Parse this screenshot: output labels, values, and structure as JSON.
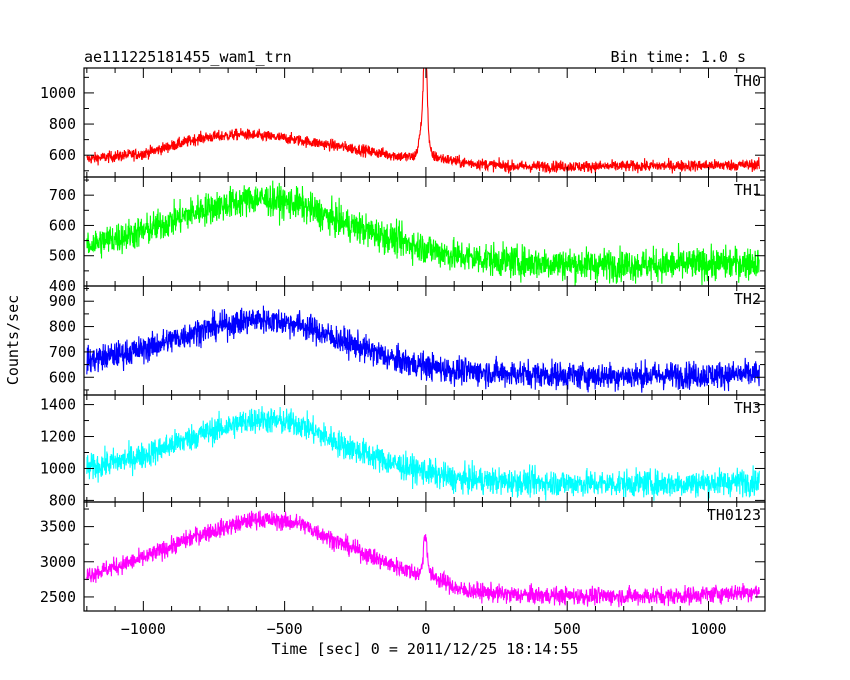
{
  "chart_data": {
    "type": "line",
    "title_left": "ae111225181455_wam1_trn",
    "title_right": "Bin time: 1.0 s",
    "xlabel": "Time [sec] 0 = 2011/12/25 18:14:55",
    "ylabel": "Counts/sec",
    "xlim": [
      -1210,
      1200
    ],
    "x_ticks": [
      -1000,
      -500,
      0,
      500,
      1000
    ],
    "x_tick_labels": [
      "−1000",
      "−500",
      "0",
      "500",
      "1000"
    ],
    "panels": [
      {
        "name": "TH0",
        "color": "#ff0000",
        "ylim": [
          460,
          1160
        ],
        "y_ticks": [
          600,
          800,
          1000
        ],
        "y_tick_labels": [
          "600",
          "800",
          "1000"
        ],
        "shape": [
          [
            -1200,
            575
          ],
          [
            -1000,
            610
          ],
          [
            -800,
            710
          ],
          [
            -650,
            735
          ],
          [
            -500,
            710
          ],
          [
            -300,
            655
          ],
          [
            -100,
            595
          ],
          [
            -30,
            585
          ],
          [
            30,
            590
          ],
          [
            120,
            555
          ],
          [
            300,
            528
          ],
          [
            600,
            528
          ],
          [
            900,
            532
          ],
          [
            1180,
            538
          ]
        ],
        "noise": 26,
        "spikes": [
          {
            "x": -2,
            "peak": 1160,
            "width": 8
          },
          {
            "x": -8,
            "peak": 840,
            "width": 18
          }
        ]
      },
      {
        "name": "TH1",
        "color": "#00ff00",
        "ylim": [
          400,
          760
        ],
        "y_ticks": [
          400,
          500,
          600,
          700
        ],
        "y_tick_labels": [
          "400",
          "500",
          "600",
          "700"
        ],
        "shape": [
          [
            -1200,
            535
          ],
          [
            -1000,
            580
          ],
          [
            -800,
            650
          ],
          [
            -600,
            690
          ],
          [
            -450,
            670
          ],
          [
            -300,
            610
          ],
          [
            -100,
            550
          ],
          [
            100,
            500
          ],
          [
            300,
            480
          ],
          [
            600,
            470
          ],
          [
            900,
            470
          ],
          [
            1180,
            478
          ]
        ],
        "noise": 38,
        "spikes": []
      },
      {
        "name": "TH2",
        "color": "#0000ff",
        "ylim": [
          530,
          960
        ],
        "y_ticks": [
          600,
          700,
          800,
          900
        ],
        "y_tick_labels": [
          "600",
          "700",
          "800",
          "900"
        ],
        "shape": [
          [
            -1200,
            665
          ],
          [
            -1000,
            710
          ],
          [
            -800,
            785
          ],
          [
            -600,
            830
          ],
          [
            -450,
            810
          ],
          [
            -300,
            745
          ],
          [
            -100,
            665
          ],
          [
            100,
            625
          ],
          [
            300,
            615
          ],
          [
            600,
            605
          ],
          [
            900,
            608
          ],
          [
            1180,
            612
          ]
        ],
        "noise": 38,
        "spikes": []
      },
      {
        "name": "TH3",
        "color": "#00ffff",
        "ylim": [
          790,
          1460
        ],
        "y_ticks": [
          800,
          1000,
          1200,
          1400
        ],
        "y_tick_labels": [
          "800",
          "1000",
          "1200",
          "1400"
        ],
        "shape": [
          [
            -1200,
            1000
          ],
          [
            -1000,
            1080
          ],
          [
            -800,
            1215
          ],
          [
            -600,
            1310
          ],
          [
            -450,
            1280
          ],
          [
            -300,
            1150
          ],
          [
            -100,
            1020
          ],
          [
            100,
            935
          ],
          [
            300,
            915
          ],
          [
            600,
            905
          ],
          [
            900,
            905
          ],
          [
            1180,
            920
          ]
        ],
        "noise": 60,
        "spikes": []
      },
      {
        "name": "TH0123",
        "color": "#ff00ff",
        "ylim": [
          2300,
          3850
        ],
        "y_ticks": [
          2500,
          3000,
          3500
        ],
        "y_tick_labels": [
          "2500",
          "3000",
          "3500"
        ],
        "shape": [
          [
            -1200,
            2810
          ],
          [
            -1000,
            3050
          ],
          [
            -800,
            3390
          ],
          [
            -600,
            3610
          ],
          [
            -450,
            3550
          ],
          [
            -300,
            3260
          ],
          [
            -150,
            3000
          ],
          [
            -30,
            2830
          ],
          [
            30,
            2790
          ],
          [
            120,
            2600
          ],
          [
            300,
            2530
          ],
          [
            600,
            2510
          ],
          [
            900,
            2515
          ],
          [
            1180,
            2580
          ]
        ],
        "noise": 90,
        "spikes": [
          {
            "x": -2,
            "peak": 3380,
            "width": 10
          }
        ]
      }
    ]
  }
}
